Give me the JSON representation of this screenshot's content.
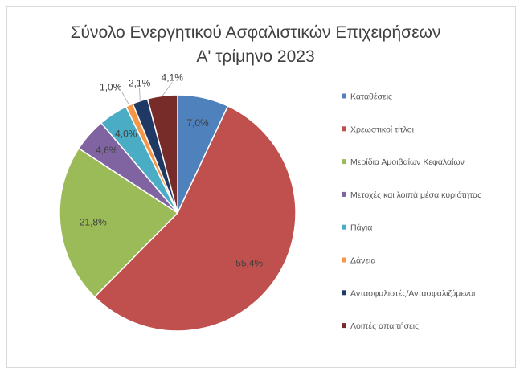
{
  "chart_data": {
    "type": "pie",
    "title": "Σύνολο Ενεργητικού Ασφαλιστικών Επιχειρήσεων",
    "subtitle": "Α' τρίμηνο 2023",
    "categories": [
      "Καταθέσεις",
      "Χρεωστικοί τίτλοι",
      "Μερίδια Αμοιβαίων Κεφαλαίων",
      "Μετοχές και λοιπά μέσα κυριότητας",
      "Πάγια",
      "Δάνεια",
      "Αντασφαλιστές/Αντασφαλιζόμενοι",
      "Λοιπές απαιτήσεις"
    ],
    "values": [
      7.0,
      55.4,
      21.8,
      4.6,
      4.0,
      1.0,
      2.1,
      4.1
    ],
    "data_labels": [
      "7,0%",
      "55,4%",
      "21,8%",
      "4,6%",
      "4,0%",
      "1,0%",
      "2,1%",
      "4,1%"
    ],
    "colors": [
      "#4f81bd",
      "#c0504d",
      "#9bbb59",
      "#8064a2",
      "#4bacc6",
      "#f79646",
      "#1f3864",
      "#772c2a"
    ],
    "legend_position": "right"
  }
}
